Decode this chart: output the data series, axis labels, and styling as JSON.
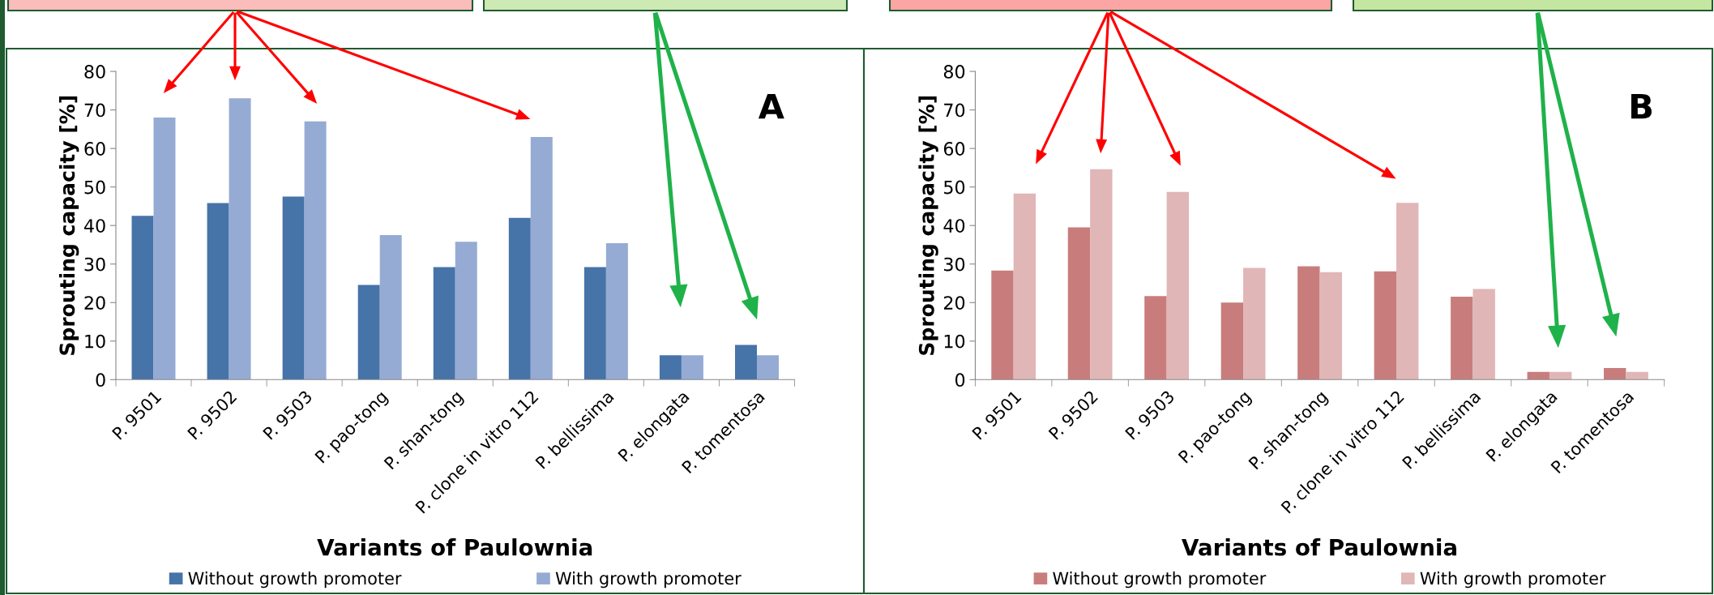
{
  "chart_data": [
    {
      "type": "bar",
      "categories": [
        "P. 9501",
        "P. 9502",
        "P. 9503",
        "P. pao-tong",
        "P. shan-tong",
        "P. clone in vitro 112",
        "P. bellissima",
        "P. elongata",
        "P. tomentosa"
      ],
      "series": [
        {
          "name": "Without growth promoter",
          "color": "#4673a8",
          "values": [
            42.5,
            45.8,
            47.5,
            24.6,
            29.2,
            42,
            29.2,
            6.3,
            9.0
          ]
        },
        {
          "name": "With growth promoter",
          "color": "#95abd3",
          "values": [
            68,
            73,
            67,
            37.5,
            35.8,
            63,
            35.4,
            6.3,
            6.3
          ]
        }
      ],
      "xlabel": "Variants of Paulownia",
      "ylabel": "Sprouting capacity [%]",
      "ylim": [
        0,
        80
      ],
      "yticks": [
        0,
        10,
        20,
        30,
        40,
        50,
        60,
        70,
        80
      ],
      "grid": false,
      "legend": "bottom",
      "annotations": [
        "A"
      ]
    },
    {
      "type": "bar",
      "categories": [
        "P. 9501",
        "P. 9502",
        "P. 9503",
        "P. pao-tong",
        "P. shan-tong",
        "P. clone in vitro 112",
        "P. bellissima",
        "P. elongata",
        "P. tomentosa"
      ],
      "series": [
        {
          "name": "Without growth promoter",
          "color": "#c87d7c",
          "values": [
            28.3,
            39.5,
            21.7,
            20,
            29.4,
            28.1,
            21.5,
            2,
            3
          ]
        },
        {
          "name": "With growth promoter",
          "color": "#e0b6b6",
          "values": [
            48.3,
            54.6,
            48.7,
            29,
            27.9,
            45.9,
            23.5,
            2,
            2
          ]
        }
      ],
      "xlabel": "Variants of Paulownia",
      "ylabel": "Sprouting capacity [%]",
      "ylim": [
        0,
        80
      ],
      "yticks": [
        0,
        10,
        20,
        30,
        40,
        50,
        60,
        70,
        80
      ],
      "grid": false,
      "legend": "bottom",
      "annotations": [
        "B"
      ]
    }
  ]
}
